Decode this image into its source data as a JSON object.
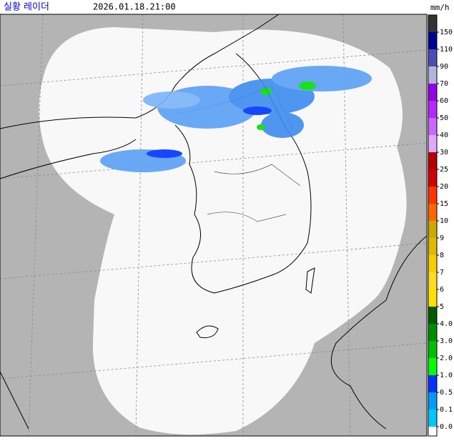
{
  "header": {
    "title": "실황 레이더",
    "timestamp": "2026.01.18.21:00",
    "unit": "mm/h"
  },
  "legend": {
    "items": [
      {
        "label": "150",
        "color": "#333333"
      },
      {
        "label": "110",
        "color": "#000390"
      },
      {
        "label": "90",
        "color": "#4c4eb1"
      },
      {
        "label": "70",
        "color": "#b3b4de"
      },
      {
        "label": "60",
        "color": "#9300e4"
      },
      {
        "label": "50",
        "color": "#b329ff"
      },
      {
        "label": "40",
        "color": "#c969ff"
      },
      {
        "label": "30",
        "color": "#e0a9ff"
      },
      {
        "label": "25",
        "color": "#b40000"
      },
      {
        "label": "20",
        "color": "#d20000"
      },
      {
        "label": "15",
        "color": "#ff3300"
      },
      {
        "label": "10",
        "color": "#ff6600"
      },
      {
        "label": "9",
        "color": "#ccaa00"
      },
      {
        "label": "8",
        "color": "#e0b900"
      },
      {
        "label": "7",
        "color": "#f9cd00"
      },
      {
        "label": "6",
        "color": "#ffdc1f"
      },
      {
        "label": "5",
        "color": "#ffe100"
      },
      {
        "label": "4.0",
        "color": "#005a00"
      },
      {
        "label": "3.0",
        "color": "#008c00"
      },
      {
        "label": "2.0",
        "color": "#00be00"
      },
      {
        "label": "1.0",
        "color": "#00ff00"
      },
      {
        "label": "0.5",
        "color": "#0033ff"
      },
      {
        "label": "0.1",
        "color": "#009bf5"
      },
      {
        "label": "0.0",
        "color": "#00c8ff"
      }
    ]
  }
}
